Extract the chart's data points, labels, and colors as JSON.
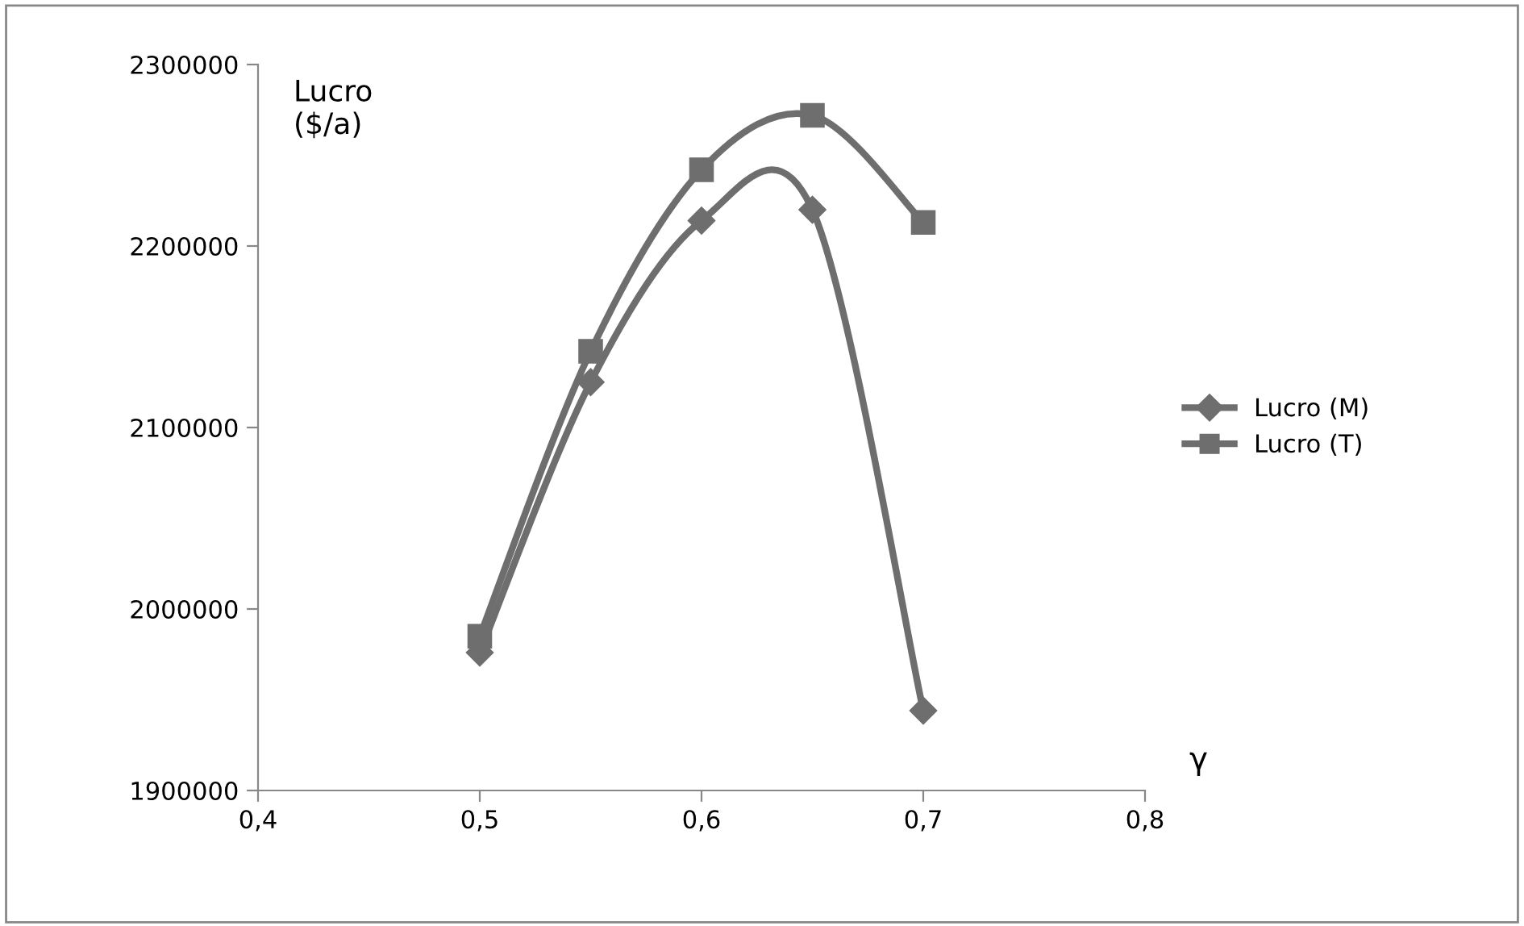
{
  "chart_data": {
    "type": "line",
    "xlabel": "γ",
    "ylabel": "Lucro\n($/a)",
    "x": [
      0.5,
      0.55,
      0.6,
      0.65,
      0.7
    ],
    "series": [
      {
        "name": "Lucro (M)",
        "color": "#6e6e6e",
        "marker": "diamond",
        "values": [
          1976000,
          2125000,
          2214000,
          2220000,
          1944000
        ]
      },
      {
        "name": "Lucro (T)",
        "color": "#6e6e6e",
        "marker": "square",
        "values": [
          1985000,
          2142000,
          2242000,
          2272000,
          2213000
        ]
      }
    ],
    "xlim": [
      0.4,
      0.8
    ],
    "xticks": [
      {
        "value": 0.4,
        "label": "0,4"
      },
      {
        "value": 0.5,
        "label": "0,5"
      },
      {
        "value": 0.6,
        "label": "0,6"
      },
      {
        "value": 0.7,
        "label": "0,7"
      },
      {
        "value": 0.8,
        "label": "0,8"
      }
    ],
    "ylim": [
      1900000,
      2300000
    ],
    "yticks": [
      1900000,
      2000000,
      2100000,
      2200000,
      2300000
    ],
    "grid": false,
    "legend": "right",
    "line_style": "solid"
  }
}
